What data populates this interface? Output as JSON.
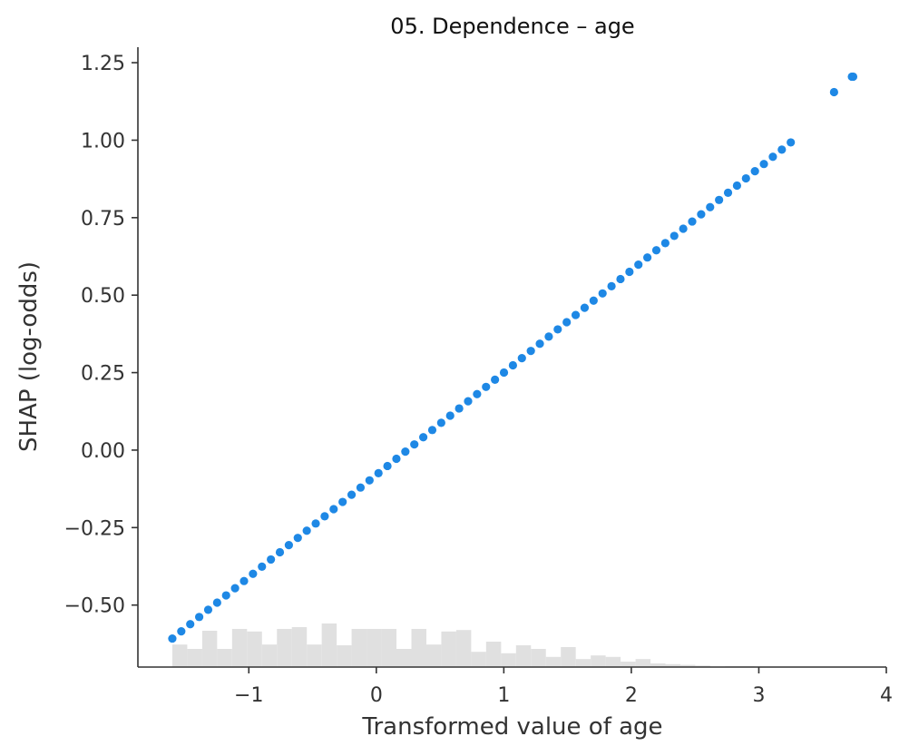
{
  "chart_data": {
    "type": "scatter",
    "title": "05. Dependence – age",
    "xlabel": "Transformed value of age",
    "ylabel": "SHAP (log-odds)",
    "xlim": [
      -1.87,
      4.0
    ],
    "ylim": [
      -0.7,
      1.3
    ],
    "xticks": [
      -1,
      0,
      1,
      2,
      3,
      4
    ],
    "xtick_labels": [
      "−1",
      "0",
      "1",
      "2",
      "3",
      "4"
    ],
    "yticks": [
      -0.5,
      -0.25,
      0.0,
      0.25,
      0.5,
      0.75,
      1.0,
      1.25
    ],
    "ytick_labels": [
      "−0.50",
      "−0.25",
      "0.00",
      "0.25",
      "0.50",
      "0.75",
      "1.00",
      "1.25"
    ],
    "grid": false,
    "point_color": "#1E88E5",
    "histogram_color": "#E0E0E0",
    "series": [
      {
        "x_range": [
          -1.6,
          3.3
        ],
        "x_step": 0.0703,
        "relation": {
          "slope": 0.33,
          "intercept": -0.08
        },
        "extra_points": [
          {
            "x": 3.59,
            "y": 1.155
          },
          {
            "x": 3.73,
            "y": 1.205
          },
          {
            "x": 3.74,
            "y": 1.205
          }
        ]
      }
    ],
    "histogram": {
      "bin_start": -1.6,
      "bin_width": 0.1172,
      "heights": [
        0.62,
        0.5,
        1.0,
        0.5,
        1.05,
        0.98,
        0.62,
        1.05,
        1.1,
        0.62,
        1.2,
        0.6,
        1.05,
        1.05,
        1.05,
        0.5,
        1.05,
        0.62,
        0.98,
        1.02,
        0.42,
        0.7,
        0.38,
        0.6,
        0.5,
        0.28,
        0.55,
        0.22,
        0.32,
        0.28,
        0.15,
        0.22,
        0.1,
        0.08,
        0.06,
        0.04,
        0.0,
        0.02,
        0.02,
        0.0,
        0.01,
        0.01,
        0.0,
        0.0,
        0.0,
        0.0,
        0.0,
        0.0,
        0.0
      ]
    }
  }
}
